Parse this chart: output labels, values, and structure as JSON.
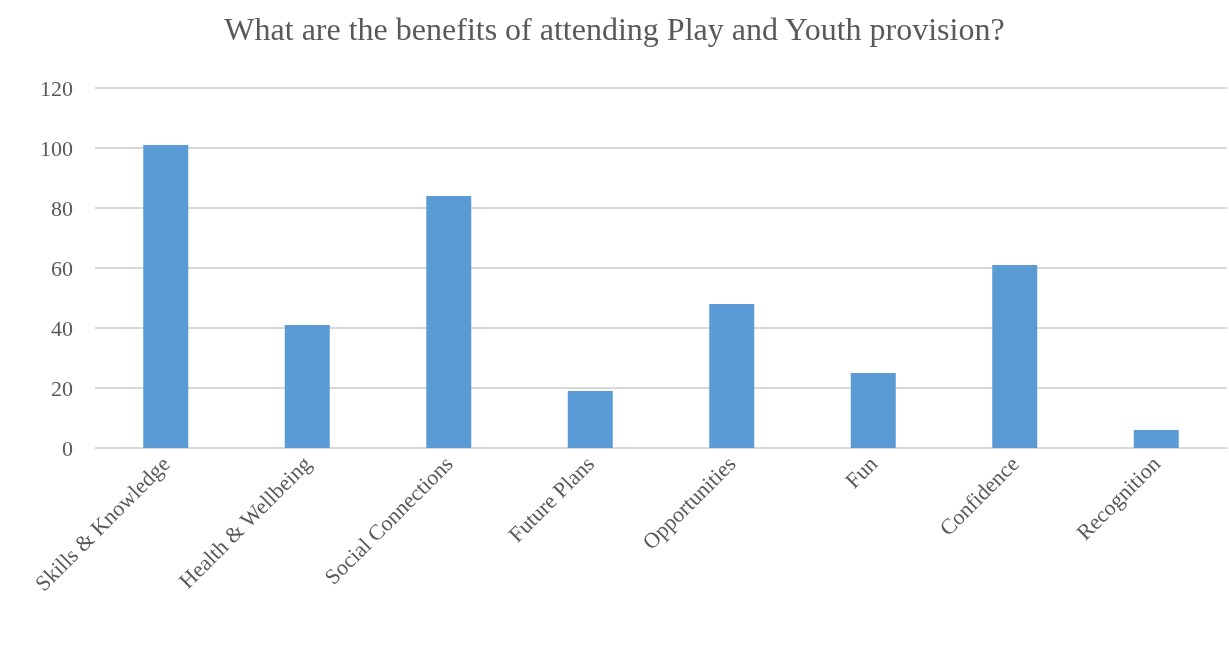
{
  "chart_data": {
    "type": "bar",
    "title": "What are the benefits of attending Play and Youth provision?",
    "categories": [
      "Skills & Knowledge",
      "Health & Wellbeing",
      "Social Connections",
      "Future Plans",
      "Opportunities",
      "Fun",
      "Confidence",
      "Recognition"
    ],
    "values": [
      101,
      41,
      84,
      19,
      48,
      25,
      61,
      6
    ],
    "color": "#5b9bd5",
    "ylim": [
      0,
      120
    ],
    "yticks": [
      0,
      20,
      40,
      60,
      80,
      100,
      120
    ],
    "grid": "y"
  }
}
